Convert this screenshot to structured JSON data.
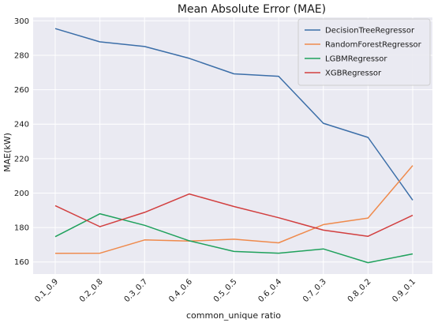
{
  "chart_data": {
    "type": "line",
    "title": "Mean Absolute Error (MAE)",
    "xlabel": "common_unique ratio",
    "ylabel": "MAE(kW)",
    "categories": [
      "0.1_0.9",
      "0.2_0.8",
      "0.3_0.7",
      "0.4_0.6",
      "0.5_0.5",
      "0.6_0.4",
      "0.7_0.3",
      "0.8_0.2",
      "0.9_0.1"
    ],
    "ylim": [
      153,
      302
    ],
    "yticks": [
      160,
      180,
      200,
      220,
      240,
      260,
      280,
      300
    ],
    "grid": true,
    "legend_position": "top-right",
    "series": [
      {
        "name": "DecisionTreeRegressor",
        "color": "#3b6ea8",
        "values": [
          295.5,
          287.8,
          285.1,
          278.2,
          269.2,
          267.8,
          240.5,
          232.3,
          195.9
        ]
      },
      {
        "name": "RandomForestRegressor",
        "color": "#ef8a4c",
        "values": [
          165.0,
          165.1,
          172.8,
          172.1,
          173.2,
          171.1,
          181.7,
          185.5,
          216.0
        ]
      },
      {
        "name": "LGBMRegressor",
        "color": "#1fa15c",
        "values": [
          174.7,
          188.0,
          181.3,
          172.3,
          166.1,
          165.1,
          167.6,
          159.6,
          164.7
        ]
      },
      {
        "name": "XGBRegressor",
        "color": "#d23f3f",
        "values": [
          192.7,
          180.5,
          188.8,
          199.5,
          192.2,
          185.7,
          178.5,
          174.9,
          187.1
        ]
      }
    ]
  }
}
